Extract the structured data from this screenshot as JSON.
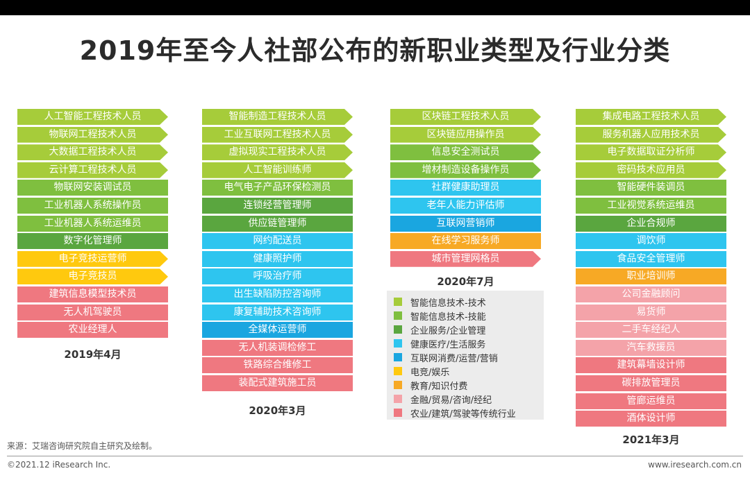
{
  "title": "2019年至今人社部公布的新职业类型及行业分类",
  "colors": {
    "tech_tech": "#a6cc3a",
    "tech_skill": "#7fbf3f",
    "enterprise": "#5aa63f",
    "health": "#2ec5ef",
    "internet": "#1aa6e0",
    "esports": "#ffc90e",
    "education": "#f7a925",
    "finance": "#f4a3a9",
    "traditional": "#ef7880"
  },
  "legend": [
    {
      "key": "tech_tech",
      "label": "智能信息技术-技术"
    },
    {
      "key": "tech_skill",
      "label": "智能信息技术-技能"
    },
    {
      "key": "enterprise",
      "label": "企业服务/企业管理"
    },
    {
      "key": "health",
      "label": "健康医疗/生活服务"
    },
    {
      "key": "internet",
      "label": "互联网消费/运营/营销"
    },
    {
      "key": "esports",
      "label": "电竞/娱乐"
    },
    {
      "key": "education",
      "label": "教育/知识付费"
    },
    {
      "key": "finance",
      "label": "金融/贸易/咨询/经纪"
    },
    {
      "key": "traditional",
      "label": "农业/建筑/驾驶等传统行业"
    }
  ],
  "chart_data": {
    "type": "table",
    "columns": [
      {
        "date": "2019年4月",
        "items": [
          {
            "label": "人工智能工程技术人员",
            "category": "tech_tech",
            "arrow": true
          },
          {
            "label": "物联网工程技术人员",
            "category": "tech_tech",
            "arrow": true
          },
          {
            "label": "大数据工程技术人员",
            "category": "tech_tech",
            "arrow": true
          },
          {
            "label": "云计算工程技术人员",
            "category": "tech_tech",
            "arrow": true
          },
          {
            "label": "物联网安装调试员",
            "category": "tech_skill",
            "arrow": false
          },
          {
            "label": "工业机器人系统操作员",
            "category": "tech_skill",
            "arrow": false
          },
          {
            "label": "工业机器人系统运维员",
            "category": "tech_skill",
            "arrow": false
          },
          {
            "label": "数字化管理师",
            "category": "enterprise",
            "arrow": false
          },
          {
            "label": "电子竞技运营师",
            "category": "esports",
            "arrow": true
          },
          {
            "label": "电子竞技员",
            "category": "esports",
            "arrow": true
          },
          {
            "label": "建筑信息模型技术员",
            "category": "traditional",
            "arrow": false
          },
          {
            "label": "无人机驾驶员",
            "category": "traditional",
            "arrow": false
          },
          {
            "label": "农业经理人",
            "category": "traditional",
            "arrow": false
          }
        ]
      },
      {
        "date": "2020年3月",
        "items": [
          {
            "label": "智能制造工程技术人员",
            "category": "tech_tech",
            "arrow": true
          },
          {
            "label": "工业互联网工程技术人员",
            "category": "tech_tech",
            "arrow": true
          },
          {
            "label": "虚拟现实工程技术人员",
            "category": "tech_tech",
            "arrow": true
          },
          {
            "label": "人工智能训练师",
            "category": "tech_tech",
            "arrow": true
          },
          {
            "label": "电气电子产品环保检测员",
            "category": "tech_skill",
            "arrow": false
          },
          {
            "label": "连锁经营管理师",
            "category": "enterprise",
            "arrow": false
          },
          {
            "label": "供应链管理师",
            "category": "enterprise",
            "arrow": false
          },
          {
            "label": "网约配送员",
            "category": "health",
            "arrow": false
          },
          {
            "label": "健康照护师",
            "category": "health",
            "arrow": false
          },
          {
            "label": "呼吸治疗师",
            "category": "health",
            "arrow": false
          },
          {
            "label": "出生缺陷防控咨询师",
            "category": "health",
            "arrow": false
          },
          {
            "label": "康复辅助技术咨询师",
            "category": "health",
            "arrow": false
          },
          {
            "label": "全媒体运营师",
            "category": "internet",
            "arrow": false
          },
          {
            "label": "无人机装调检修工",
            "category": "traditional",
            "arrow": false
          },
          {
            "label": "铁路综合维修工",
            "category": "traditional",
            "arrow": false
          },
          {
            "label": "装配式建筑施工员",
            "category": "traditional",
            "arrow": false
          }
        ]
      },
      {
        "date": "2020年7月",
        "items": [
          {
            "label": "区块链工程技术人员",
            "category": "tech_tech",
            "arrow": true
          },
          {
            "label": "区块链应用操作员",
            "category": "tech_tech",
            "arrow": true
          },
          {
            "label": "信息安全测试员",
            "category": "tech_skill",
            "arrow": true
          },
          {
            "label": "增材制造设备操作员",
            "category": "tech_skill",
            "arrow": true
          },
          {
            "label": "社群健康助理员",
            "category": "health",
            "arrow": false
          },
          {
            "label": "老年人能力评估师",
            "category": "health",
            "arrow": false
          },
          {
            "label": "互联网营销师",
            "category": "internet",
            "arrow": false
          },
          {
            "label": "在线学习服务师",
            "category": "education",
            "arrow": false
          },
          {
            "label": "城市管理网格员",
            "category": "traditional",
            "arrow": true
          }
        ]
      },
      {
        "date": "2021年3月",
        "items": [
          {
            "label": "集成电路工程技术人员",
            "category": "tech_tech",
            "arrow": true
          },
          {
            "label": "服务机器人应用技术员",
            "category": "tech_tech",
            "arrow": true
          },
          {
            "label": "电子数据取证分析师",
            "category": "tech_tech",
            "arrow": true
          },
          {
            "label": "密码技术应用员",
            "category": "tech_tech",
            "arrow": true
          },
          {
            "label": "智能硬件装调员",
            "category": "tech_skill",
            "arrow": false
          },
          {
            "label": "工业视觉系统运维员",
            "category": "tech_skill",
            "arrow": false
          },
          {
            "label": "企业合规师",
            "category": "enterprise",
            "arrow": false
          },
          {
            "label": "调饮师",
            "category": "health",
            "arrow": false
          },
          {
            "label": "食品安全管理师",
            "category": "health",
            "arrow": false
          },
          {
            "label": "职业培训师",
            "category": "education",
            "arrow": false
          },
          {
            "label": "公司金融顾问",
            "category": "finance",
            "arrow": false
          },
          {
            "label": "易货师",
            "category": "finance",
            "arrow": false
          },
          {
            "label": "二手车经纪人",
            "category": "finance",
            "arrow": false
          },
          {
            "label": "汽车救援员",
            "category": "finance",
            "arrow": false
          },
          {
            "label": "建筑幕墙设计师",
            "category": "traditional",
            "arrow": false
          },
          {
            "label": "碳排放管理员",
            "category": "traditional",
            "arrow": false
          },
          {
            "label": "管廊运维员",
            "category": "traditional",
            "arrow": false
          },
          {
            "label": "酒体设计师",
            "category": "traditional",
            "arrow": false
          }
        ]
      }
    ]
  },
  "footer": {
    "source": "来源：艾瑞咨询研究院自主研究及绘制。",
    "copyright": "©2021.12 iResearch Inc.",
    "site": "www.iresearch.com.cn"
  }
}
